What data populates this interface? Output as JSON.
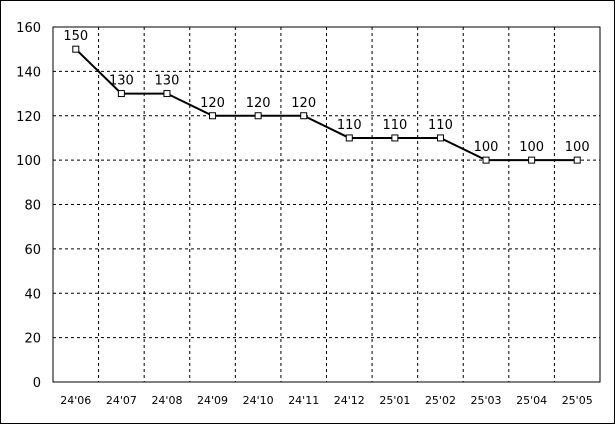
{
  "chart_data": {
    "type": "line",
    "categories": [
      "24'06",
      "24'07",
      "24'08",
      "24'09",
      "24'10",
      "24'11",
      "24'12",
      "25'01",
      "25'02",
      "25'03",
      "25'04",
      "25'05"
    ],
    "values": [
      150,
      130,
      130,
      120,
      120,
      120,
      110,
      110,
      110,
      100,
      100,
      100
    ],
    "ylim": [
      0,
      160
    ],
    "y_ticks": [
      0,
      20,
      40,
      60,
      80,
      100,
      120,
      140,
      160
    ],
    "grid": "dashed",
    "data_labels": true,
    "marker": "hollow-square",
    "colors": {
      "line": "#000000",
      "grid": "#000000",
      "frame": "#000000",
      "background": "#ffffff"
    }
  }
}
